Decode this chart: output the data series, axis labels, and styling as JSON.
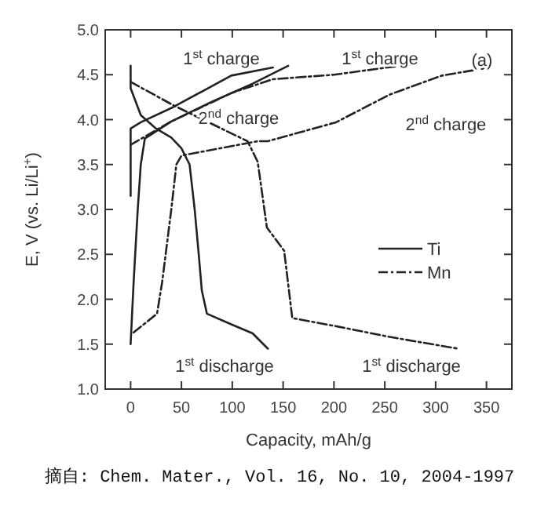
{
  "chart_data": {
    "type": "line",
    "xlabel": "Capacity, mAh/g",
    "ylabel": "E, V (vs. Li/Li$^{+}$)",
    "xlim": [
      -25,
      375
    ],
    "xticks": [
      0,
      50,
      100,
      150,
      200,
      250,
      300,
      350
    ],
    "ylim": [
      1.0,
      5.0
    ],
    "yticks": [
      {
        "value": 1.0,
        "label": "1.0"
      },
      {
        "value": 1.5,
        "label": "1.5"
      },
      {
        "value": 2.0,
        "label": "2.0"
      },
      {
        "value": 2.5,
        "label": "2.5"
      },
      {
        "value": 3.0,
        "label": "3.0"
      },
      {
        "value": 3.5,
        "label": "3.5"
      },
      {
        "value": 4.0,
        "label": "4.0"
      },
      {
        "value": 4.5,
        "label": "4.5"
      },
      {
        "value": 5.0,
        "label": "5.0"
      }
    ],
    "grid": false,
    "legend": "right",
    "series": [
      {
        "name": "Ti",
        "color": "#222222",
        "line_style": "solid",
        "x": [
          0,
          0,
          10,
          25,
          40,
          50,
          58,
          63,
          67,
          70,
          75,
          99,
          120,
          135,
          null,
          0,
          0,
          10,
          42,
          99,
          140,
          null,
          0,
          3,
          7,
          10,
          14,
          40,
          80,
          120,
          155
        ],
        "values": [
          4.6,
          4.35,
          4.05,
          3.9,
          3.8,
          3.68,
          3.5,
          3.0,
          2.5,
          2.1,
          1.84,
          1.72,
          1.62,
          1.45,
          null,
          3.15,
          3.9,
          3.97,
          4.14,
          4.49,
          4.58,
          null,
          1.5,
          2.2,
          3.0,
          3.5,
          3.79,
          3.98,
          4.2,
          4.4,
          4.6
        ]
      },
      {
        "name": "Mn",
        "color": "#222222",
        "line_style": "dashdot",
        "x": [
          0,
          42,
          115,
          125,
          134,
          151,
          159,
          202,
          255,
          322,
          null,
          0,
          40,
          100,
          140,
          200,
          265,
          null,
          3,
          26,
          31,
          40,
          45,
          50,
          125,
          135,
          202,
          255,
          306,
          353
        ],
        "values": [
          4.42,
          4.16,
          3.76,
          3.53,
          2.8,
          2.54,
          1.79,
          1.7,
          1.58,
          1.45,
          null,
          3.72,
          3.98,
          4.3,
          4.45,
          4.5,
          4.6,
          null,
          1.63,
          1.84,
          2.19,
          3.0,
          3.5,
          3.6,
          3.76,
          3.76,
          3.97,
          4.28,
          4.49,
          4.58
        ]
      }
    ],
    "annotations": [
      "1$^{st}$ charge",
      "1$^{st}$ charge",
      "(a)",
      "2$^{nd}$ charge",
      "2$^{nd}$ charge",
      "1$^{st}$ discharge",
      "1$^{st}$ discharge",
      "摘自: Chem. Mater., Vol. 16, No. 10, 2004-1997"
    ]
  }
}
